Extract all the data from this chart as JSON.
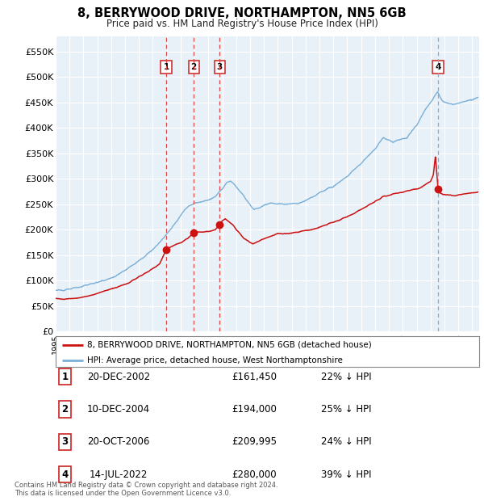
{
  "title": "8, BERRYWOOD DRIVE, NORTHAMPTON, NN5 6GB",
  "subtitle": "Price paid vs. HM Land Registry's House Price Index (HPI)",
  "bg_color": "#e8f0f8",
  "fig_bg_color": "#ffffff",
  "hpi_color": "#7ab0d8",
  "price_color": "#cc1111",
  "vline_red_color": "#dd4444",
  "vline_blue_color": "#88aacc",
  "ylim": [
    0,
    580000
  ],
  "yticks": [
    0,
    50000,
    100000,
    150000,
    200000,
    250000,
    300000,
    350000,
    400000,
    450000,
    500000,
    550000
  ],
  "ytick_labels": [
    "£0",
    "£50K",
    "£100K",
    "£150K",
    "£200K",
    "£250K",
    "£300K",
    "£350K",
    "£400K",
    "£450K",
    "£500K",
    "£550K"
  ],
  "xmin": 1995.0,
  "xmax": 2025.5,
  "purchases": [
    {
      "label": "1",
      "date_x": 2002.96,
      "price": 161450
    },
    {
      "label": "2",
      "date_x": 2004.94,
      "price": 194000
    },
    {
      "label": "3",
      "date_x": 2006.8,
      "price": 209995
    },
    {
      "label": "4",
      "date_x": 2022.54,
      "price": 280000
    }
  ],
  "legend_line1": "8, BERRYWOOD DRIVE, NORTHAMPTON, NN5 6GB (detached house)",
  "legend_line2": "HPI: Average price, detached house, West Northamptonshire",
  "table": [
    {
      "num": "1",
      "date": "20-DEC-2002",
      "price": "£161,450",
      "pct": "22% ↓ HPI"
    },
    {
      "num": "2",
      "date": "10-DEC-2004",
      "price": "£194,000",
      "pct": "25% ↓ HPI"
    },
    {
      "num": "3",
      "date": "20-OCT-2006",
      "price": "£209,995",
      "pct": "24% ↓ HPI"
    },
    {
      "num": "4",
      "date": "14-JUL-2022",
      "price": "£280,000",
      "pct": "39% ↓ HPI"
    }
  ],
  "footer": "Contains HM Land Registry data © Crown copyright and database right 2024.\nThis data is licensed under the Open Government Licence v3.0."
}
